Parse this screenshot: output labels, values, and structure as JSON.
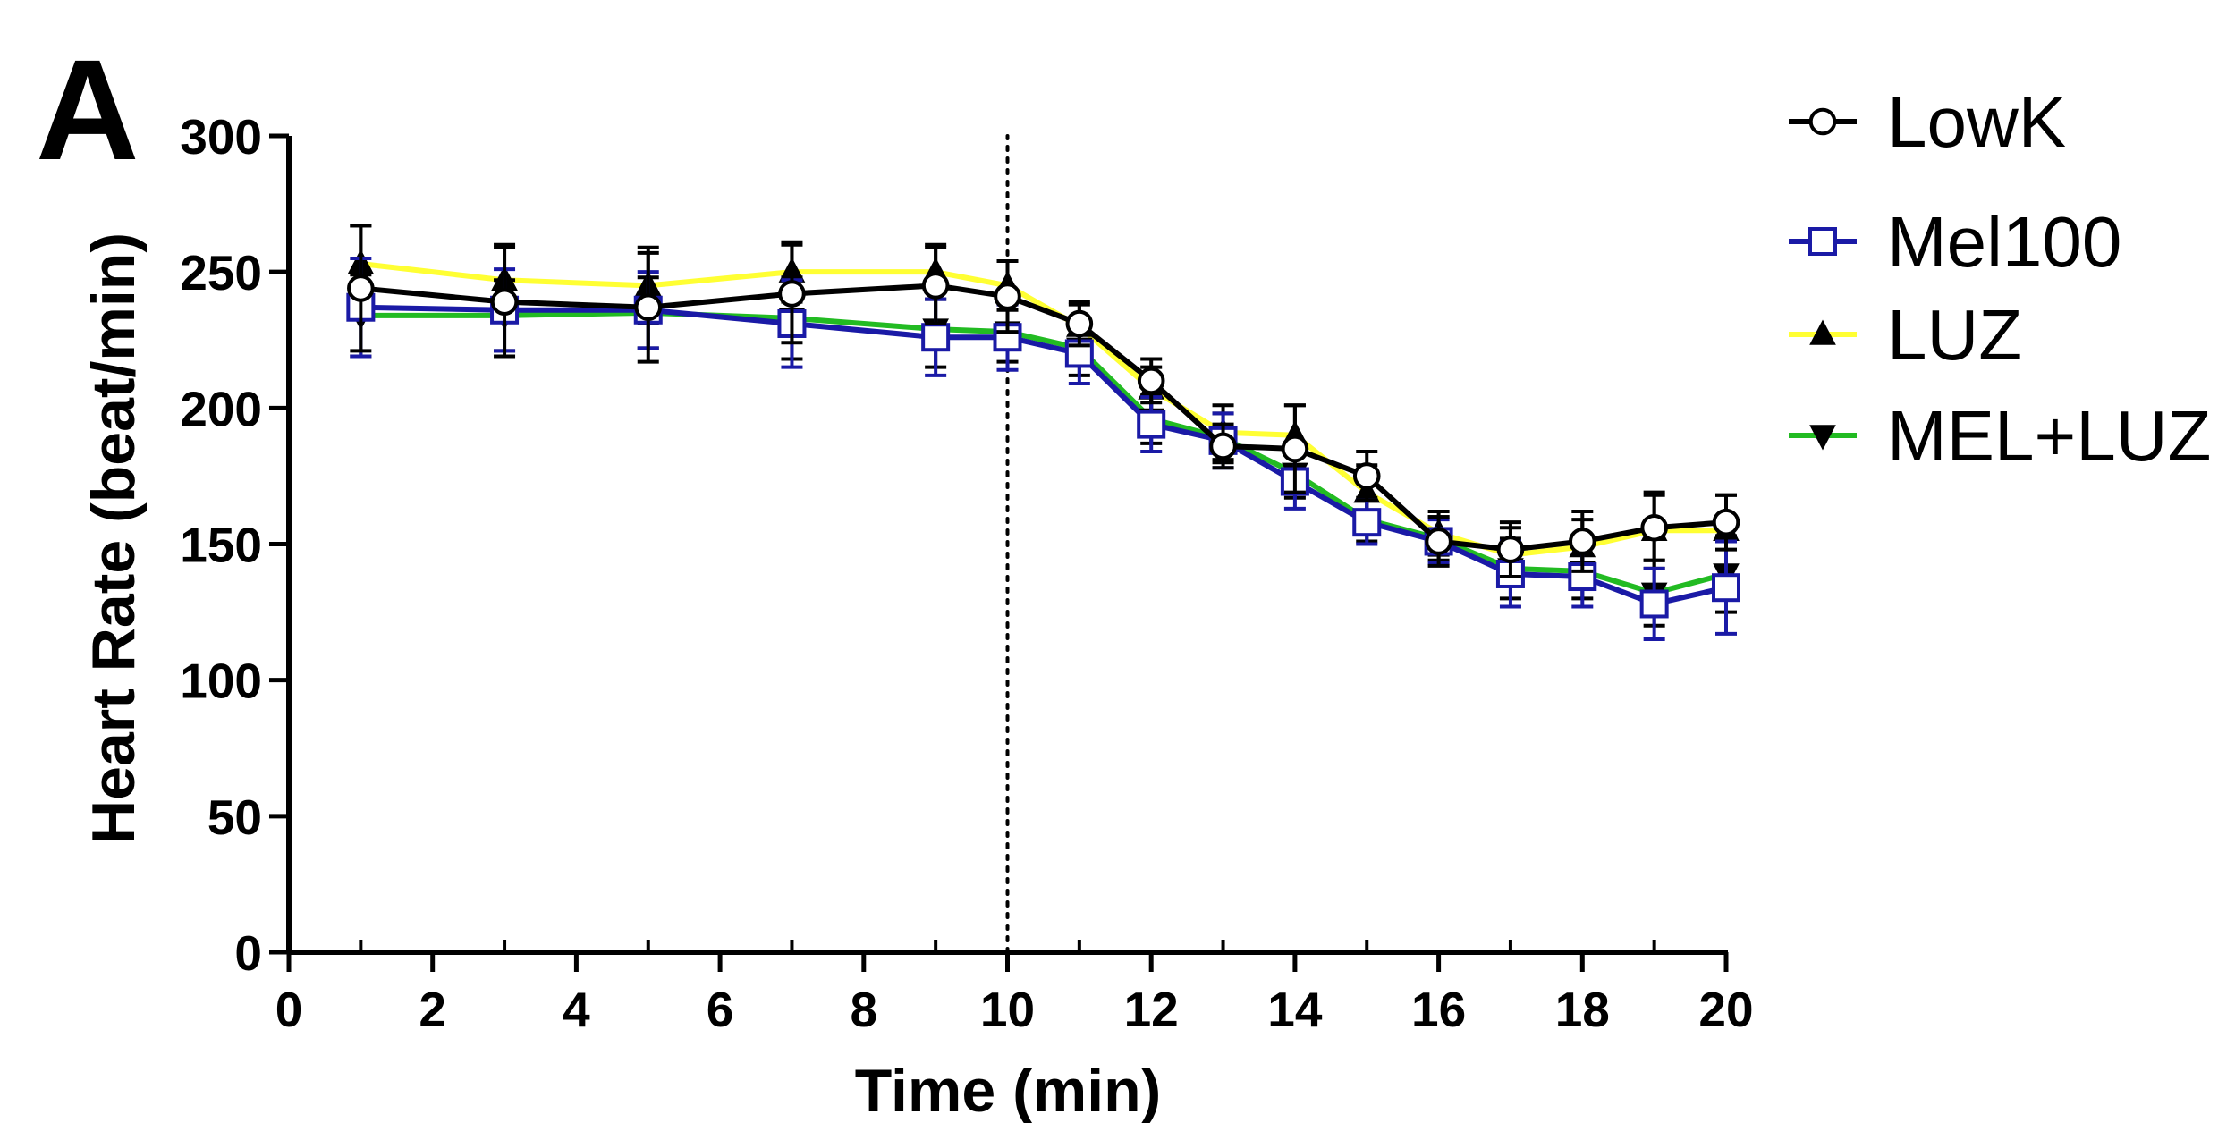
{
  "panel_label": "A",
  "chart_data": {
    "type": "line",
    "title": "",
    "xlabel": "Time (min)",
    "ylabel": "Heart Rate (beat/min)",
    "xlim": [
      0,
      20
    ],
    "ylim": [
      0,
      300
    ],
    "xticks": [
      0,
      2,
      4,
      6,
      8,
      10,
      12,
      14,
      16,
      18,
      20
    ],
    "yticks": [
      0,
      50,
      100,
      150,
      200,
      250,
      300
    ],
    "vline": {
      "x": 10,
      "style": "dotted"
    },
    "grid": false,
    "legend": "right",
    "x": [
      1,
      3,
      5,
      7,
      9,
      10,
      11,
      12,
      13,
      14,
      15,
      16,
      17,
      18,
      19,
      20
    ],
    "series": [
      {
        "name": "LowK",
        "color": "#000000",
        "marker": "circle-open",
        "values": [
          244,
          239,
          237,
          242,
          245,
          241,
          231,
          210,
          186,
          185,
          175,
          151,
          148,
          151,
          156,
          158
        ],
        "errors": [
          23,
          20,
          20,
          18,
          14,
          13,
          8,
          8,
          8,
          16,
          9,
          9,
          10,
          11,
          12,
          10
        ]
      },
      {
        "name": "Mel100",
        "color": "#1a1aa6",
        "marker": "square-open",
        "values": [
          237,
          236,
          236,
          231,
          226,
          226,
          220,
          194,
          188,
          173,
          158,
          151,
          139,
          138,
          128,
          134
        ],
        "errors": [
          18,
          15,
          14,
          16,
          14,
          12,
          11,
          10,
          10,
          10,
          8,
          8,
          12,
          11,
          13,
          17
        ]
      },
      {
        "name": "LUZ",
        "color": "#ffff33",
        "marker": "triangle-up",
        "values": [
          253,
          247,
          245,
          250,
          250,
          245,
          230,
          207,
          191,
          190,
          169,
          154,
          146,
          149,
          155,
          155
        ],
        "errors": [
          14,
          13,
          14,
          11,
          10,
          9,
          8,
          8,
          10,
          11,
          10,
          8,
          10,
          10,
          14,
          13
        ]
      },
      {
        "name": "MEL+LUZ",
        "color": "#22bb22",
        "marker": "triangle-down",
        "values": [
          234,
          234,
          235,
          233,
          229,
          228,
          222,
          196,
          189,
          176,
          159,
          152,
          141,
          140,
          132,
          139
        ],
        "errors": [
          15,
          13,
          13,
          15,
          14,
          11,
          10,
          9,
          9,
          9,
          8,
          8,
          11,
          10,
          12,
          14
        ]
      }
    ]
  }
}
